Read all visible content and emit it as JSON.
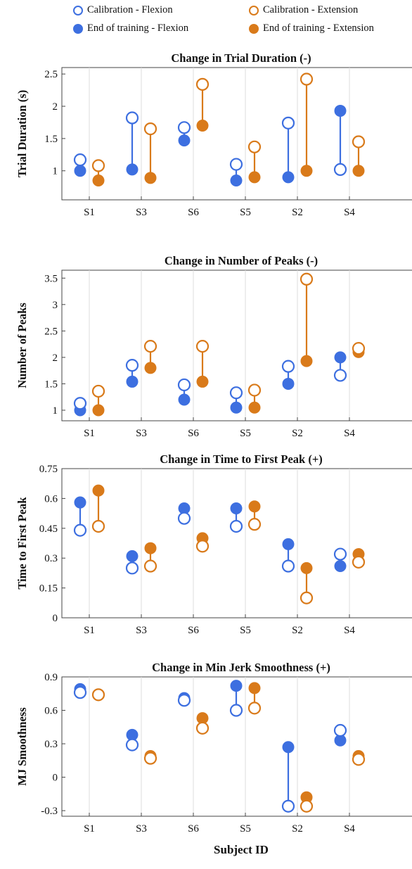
{
  "legend": {
    "items": [
      {
        "label": "Calibration - Flexion",
        "color": "#3d6fe0",
        "filled": false
      },
      {
        "label": "Calibration - Extension",
        "color": "#d97a1a",
        "filled": false
      },
      {
        "label": "End of training - Flexion",
        "color": "#3d6fe0",
        "filled": true
      },
      {
        "label": "End of training - Extension",
        "color": "#d97a1a",
        "filled": true
      }
    ]
  },
  "xlabel": "Subject ID",
  "chart_data": [
    {
      "type": "scatter",
      "title": "Change in Trial Duration (-)",
      "ylabel": "Trial Duration (s)",
      "categories": [
        "S1",
        "S3",
        "S6",
        "S5",
        "S2",
        "S4"
      ],
      "ylim": [
        0.55,
        2.6
      ],
      "yticks": [
        1,
        1.5,
        2,
        2.5
      ],
      "ytick_labels": [
        "1",
        "1.5",
        "2",
        "2.5"
      ],
      "series": [
        {
          "name": "Calibration - Flexion",
          "values": [
            1.17,
            1.82,
            1.67,
            1.1,
            1.74,
            1.02
          ]
        },
        {
          "name": "End of training - Flexion",
          "values": [
            1.0,
            1.02,
            1.47,
            0.85,
            0.9,
            1.93
          ]
        },
        {
          "name": "Calibration - Extension",
          "values": [
            1.08,
            1.65,
            2.34,
            1.37,
            2.42,
            1.45
          ]
        },
        {
          "name": "End of training - Extension",
          "values": [
            0.85,
            0.89,
            1.7,
            0.9,
            1.0,
            1.0
          ]
        }
      ]
    },
    {
      "type": "scatter",
      "title": "Change in Number of Peaks (-)",
      "ylabel": "Number of Peaks",
      "categories": [
        "S1",
        "S3",
        "S6",
        "S5",
        "S2",
        "S4"
      ],
      "ylim": [
        0.8,
        3.65
      ],
      "yticks": [
        1,
        1.5,
        2,
        2.5,
        3,
        3.5
      ],
      "ytick_labels": [
        "1",
        "1.5",
        "2",
        "2.5",
        "3",
        "3.5"
      ],
      "series": [
        {
          "name": "Calibration - Flexion",
          "values": [
            1.13,
            1.85,
            1.48,
            1.33,
            1.83,
            1.66
          ]
        },
        {
          "name": "End of training - Flexion",
          "values": [
            1.0,
            1.54,
            1.2,
            1.05,
            1.5,
            2.0
          ]
        },
        {
          "name": "Calibration - Extension",
          "values": [
            1.36,
            2.21,
            2.21,
            1.38,
            3.48,
            2.17
          ]
        },
        {
          "name": "End of training - Extension",
          "values": [
            1.0,
            1.8,
            1.54,
            1.05,
            1.93,
            2.1
          ]
        }
      ]
    },
    {
      "type": "scatter",
      "title": "Change in Time to First Peak (+)",
      "ylabel": "Time to First Peak",
      "categories": [
        "S1",
        "S3",
        "S6",
        "S5",
        "S2",
        "S4"
      ],
      "ylim": [
        0,
        0.75
      ],
      "yticks": [
        0,
        0.15,
        0.3,
        0.45,
        0.6,
        0.75
      ],
      "ytick_labels": [
        "0",
        "0.15",
        "0.3",
        "0.45",
        "0.6",
        "0.75"
      ],
      "series": [
        {
          "name": "Calibration - Flexion",
          "values": [
            0.44,
            0.25,
            0.5,
            0.46,
            0.26,
            0.32
          ]
        },
        {
          "name": "End of training - Flexion",
          "values": [
            0.58,
            0.31,
            0.55,
            0.55,
            0.37,
            0.26
          ]
        },
        {
          "name": "Calibration - Extension",
          "values": [
            0.46,
            0.26,
            0.36,
            0.47,
            0.1,
            0.28
          ]
        },
        {
          "name": "End of training - Extension",
          "values": [
            0.64,
            0.35,
            0.4,
            0.56,
            0.25,
            0.32
          ]
        }
      ]
    },
    {
      "type": "scatter",
      "title": "Change in Min Jerk Smoothness (+)",
      "ylabel": "MJ Smoothness",
      "categories": [
        "S1",
        "S3",
        "S6",
        "S5",
        "S2",
        "S4"
      ],
      "ylim": [
        -0.35,
        0.9
      ],
      "yticks": [
        -0.3,
        0,
        0.3,
        0.6,
        0.9
      ],
      "ytick_labels": [
        "-0.3",
        "0",
        "0.3",
        "0.6",
        "0.9"
      ],
      "series": [
        {
          "name": "Calibration - Flexion",
          "values": [
            0.76,
            0.29,
            0.69,
            0.6,
            -0.26,
            0.42
          ]
        },
        {
          "name": "End of training - Flexion",
          "values": [
            0.79,
            0.38,
            0.71,
            0.82,
            0.27,
            0.33
          ]
        },
        {
          "name": "Calibration - Extension",
          "values": [
            0.74,
            0.17,
            0.44,
            0.62,
            -0.26,
            0.16
          ]
        },
        {
          "name": "End of training - Extension",
          "values": [
            0.74,
            0.19,
            0.53,
            0.8,
            -0.18,
            0.19
          ]
        }
      ]
    }
  ]
}
